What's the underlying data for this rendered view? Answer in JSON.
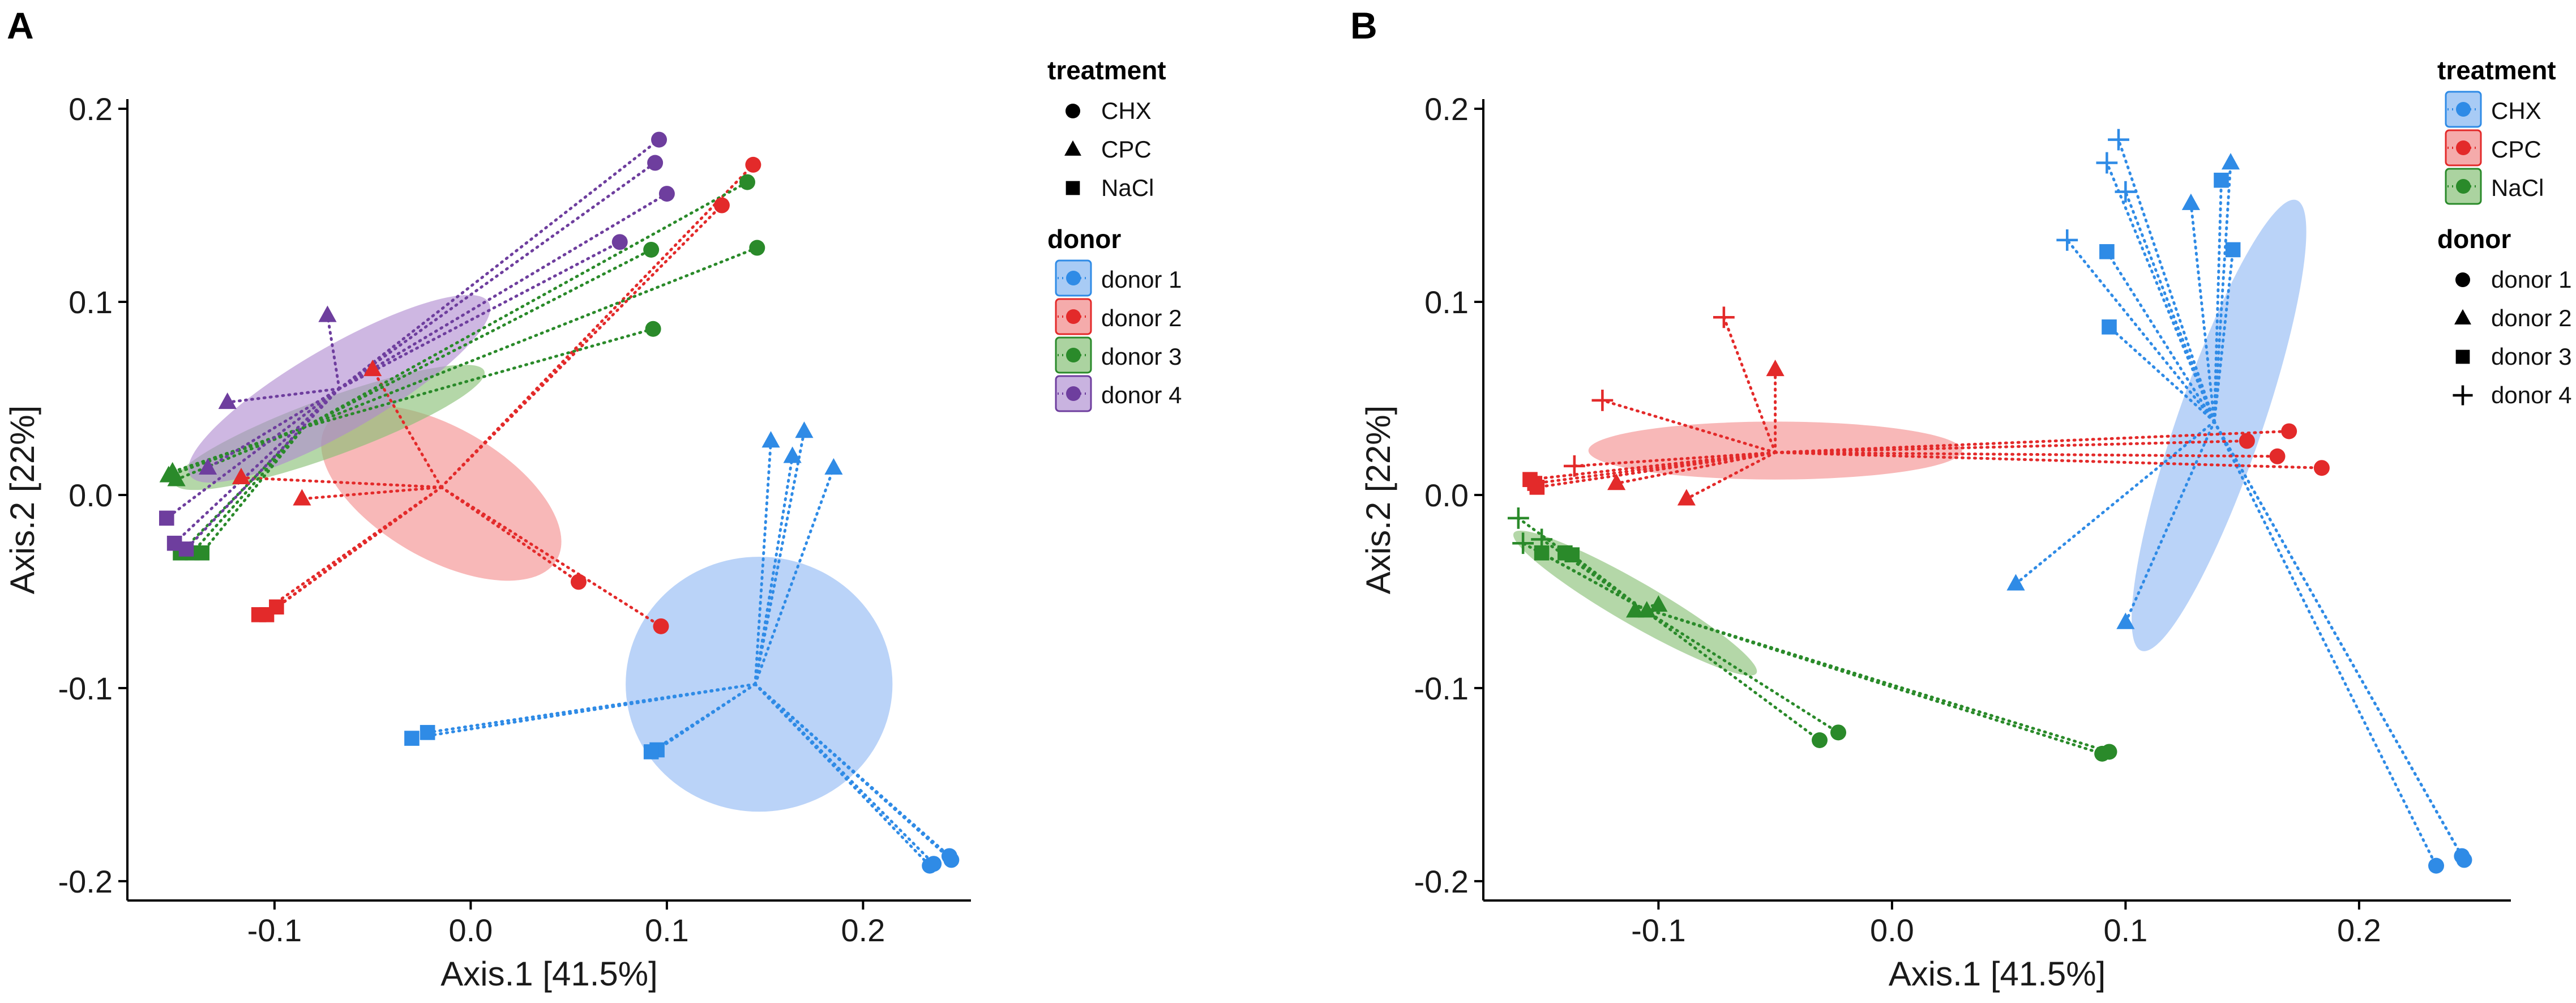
{
  "colors": {
    "blue": "#2F8BE6",
    "red": "#E32A2A",
    "green": "#2A8A2A",
    "purple": "#6E3E9E",
    "blue_fill": "#8FB8F3",
    "red_fill": "#F38C8C",
    "green_fill": "#86BF73",
    "purple_fill": "#B08BD0",
    "legend_blue_bg": "#A8CBF5",
    "legend_red_bg": "#F5ABAB",
    "legend_green_bg": "#ABD3A0",
    "legend_purple_bg": "#C9B3E0"
  },
  "chart_data": [
    {
      "panel": "A",
      "type": "scatter",
      "title": "",
      "xlabel": "Axis.1   [41.5%]",
      "ylabel": "Axis.2   [22%]",
      "xlim": [
        -0.175,
        0.255
      ],
      "ylim": [
        -0.21,
        0.205
      ],
      "x_ticks": [
        -0.1,
        0.0,
        0.1,
        0.2
      ],
      "x_tick_labels": [
        "-0.1",
        "0.0",
        "0.1",
        "0.2"
      ],
      "y_ticks": [
        -0.2,
        -0.1,
        0.0,
        0.1,
        0.2
      ],
      "y_tick_labels": [
        "-0.2",
        "-0.1",
        "0.0",
        "0.1",
        "0.2"
      ],
      "legend": {
        "position": "right",
        "groups": [
          {
            "title": "treatment",
            "style": "shape",
            "entries": [
              {
                "label": "CHX",
                "shape": "circle"
              },
              {
                "label": "CPC",
                "shape": "triangle"
              },
              {
                "label": "NaCl",
                "shape": "square"
              }
            ]
          },
          {
            "title": "donor",
            "style": "color",
            "entries": [
              {
                "label": "donor 1",
                "color": "blue"
              },
              {
                "label": "donor 2",
                "color": "red"
              },
              {
                "label": "donor 3",
                "color": "green"
              },
              {
                "label": "donor 4",
                "color": "purple"
              }
            ]
          }
        ]
      },
      "series": [
        {
          "name": "donor 1",
          "color": "blue",
          "centroid": [
            0.145,
            -0.098
          ],
          "ellipse": {
            "cx": 0.147,
            "cy": -0.098,
            "rx": 0.068,
            "ry": 0.066,
            "angle": 0
          },
          "points": [
            {
              "x": 0.153,
              "y": 0.028,
              "shape": "triangle"
            },
            {
              "x": 0.17,
              "y": 0.033,
              "shape": "triangle"
            },
            {
              "x": 0.164,
              "y": 0.02,
              "shape": "triangle"
            },
            {
              "x": 0.185,
              "y": 0.014,
              "shape": "triangle"
            },
            {
              "x": -0.022,
              "y": -0.123,
              "shape": "square"
            },
            {
              "x": -0.03,
              "y": -0.126,
              "shape": "square"
            },
            {
              "x": 0.095,
              "y": -0.132,
              "shape": "square"
            },
            {
              "x": 0.092,
              "y": -0.133,
              "shape": "square"
            },
            {
              "x": 0.234,
              "y": -0.192,
              "shape": "circle"
            },
            {
              "x": 0.236,
              "y": -0.191,
              "shape": "circle"
            },
            {
              "x": 0.244,
              "y": -0.187,
              "shape": "circle"
            },
            {
              "x": 0.245,
              "y": -0.189,
              "shape": "circle"
            }
          ]
        },
        {
          "name": "donor 2",
          "color": "red",
          "centroid": [
            -0.015,
            0.004
          ],
          "ellipse": {
            "cx": -0.015,
            "cy": 0.001,
            "rx": 0.068,
            "ry": 0.034,
            "angle": 30
          },
          "points": [
            {
              "x": -0.117,
              "y": 0.009,
              "shape": "triangle"
            },
            {
              "x": -0.086,
              "y": -0.002,
              "shape": "triangle"
            },
            {
              "x": -0.05,
              "y": 0.065,
              "shape": "triangle"
            },
            {
              "x": -0.108,
              "y": -0.062,
              "shape": "square"
            },
            {
              "x": -0.104,
              "y": -0.062,
              "shape": "square"
            },
            {
              "x": -0.099,
              "y": -0.058,
              "shape": "square"
            },
            {
              "x": 0.055,
              "y": -0.045,
              "shape": "circle"
            },
            {
              "x": 0.128,
              "y": 0.15,
              "shape": "circle"
            },
            {
              "x": 0.144,
              "y": 0.171,
              "shape": "circle"
            },
            {
              "x": 0.097,
              "y": -0.068,
              "shape": "circle"
            }
          ]
        },
        {
          "name": "donor 3",
          "color": "green",
          "centroid": [
            -0.085,
            0.035
          ],
          "ellipse": {
            "cx": -0.072,
            "cy": 0.035,
            "rx": 0.084,
            "ry": 0.015,
            "angle": -20
          },
          "points": [
            {
              "x": -0.154,
              "y": 0.01,
              "shape": "triangle"
            },
            {
              "x": -0.152,
              "y": 0.012,
              "shape": "triangle"
            },
            {
              "x": -0.15,
              "y": 0.008,
              "shape": "triangle"
            },
            {
              "x": -0.148,
              "y": -0.03,
              "shape": "square"
            },
            {
              "x": -0.142,
              "y": -0.03,
              "shape": "square"
            },
            {
              "x": -0.137,
              "y": -0.03,
              "shape": "square"
            },
            {
              "x": 0.092,
              "y": 0.127,
              "shape": "circle"
            },
            {
              "x": 0.141,
              "y": 0.162,
              "shape": "circle"
            },
            {
              "x": 0.146,
              "y": 0.128,
              "shape": "circle"
            },
            {
              "x": 0.093,
              "y": 0.086,
              "shape": "circle"
            }
          ]
        },
        {
          "name": "donor 4",
          "color": "purple",
          "centroid": [
            -0.067,
            0.055
          ],
          "ellipse": {
            "cx": -0.067,
            "cy": 0.055,
            "rx": 0.088,
            "ry": 0.022,
            "angle": -30
          },
          "points": [
            {
              "x": -0.073,
              "y": 0.093,
              "shape": "triangle"
            },
            {
              "x": -0.124,
              "y": 0.048,
              "shape": "triangle"
            },
            {
              "x": -0.134,
              "y": 0.014,
              "shape": "triangle"
            },
            {
              "x": -0.155,
              "y": -0.012,
              "shape": "square"
            },
            {
              "x": -0.151,
              "y": -0.025,
              "shape": "square"
            },
            {
              "x": -0.145,
              "y": -0.028,
              "shape": "square"
            },
            {
              "x": 0.096,
              "y": 0.184,
              "shape": "circle"
            },
            {
              "x": 0.094,
              "y": 0.172,
              "shape": "circle"
            },
            {
              "x": 0.1,
              "y": 0.156,
              "shape": "circle"
            },
            {
              "x": 0.076,
              "y": 0.131,
              "shape": "circle"
            }
          ]
        }
      ]
    },
    {
      "panel": "B",
      "type": "scatter",
      "title": "",
      "xlabel": "Axis.1   [41.5%]",
      "ylabel": "Axis.2   [22%]",
      "xlim": [
        -0.175,
        0.265
      ],
      "ylim": [
        -0.21,
        0.205
      ],
      "x_ticks": [
        -0.1,
        0.0,
        0.1,
        0.2
      ],
      "x_tick_labels": [
        "-0.1",
        "0.0",
        "0.1",
        "0.2"
      ],
      "y_ticks": [
        -0.2,
        -0.1,
        0.0,
        0.1,
        0.2
      ],
      "y_tick_labels": [
        "-0.2",
        "-0.1",
        "0.0",
        "0.1",
        "0.2"
      ],
      "legend": {
        "position": "right",
        "groups": [
          {
            "title": "treatment",
            "style": "color",
            "entries": [
              {
                "label": "CHX",
                "color": "blue"
              },
              {
                "label": "CPC",
                "color": "red"
              },
              {
                "label": "NaCl",
                "color": "green"
              }
            ]
          },
          {
            "title": "donor",
            "style": "shape",
            "entries": [
              {
                "label": "donor 1",
                "shape": "circle"
              },
              {
                "label": "donor 2",
                "shape": "triangle"
              },
              {
                "label": "donor 3",
                "shape": "square"
              },
              {
                "label": "donor 4",
                "shape": "plus"
              }
            ]
          }
        ]
      },
      "series": [
        {
          "name": "CHX",
          "color": "blue",
          "centroid": [
            0.138,
            0.038
          ],
          "ellipse": {
            "cx": 0.14,
            "cy": 0.036,
            "rx": 0.102,
            "ry": 0.022,
            "angle": -71
          },
          "points": [
            {
              "x": 0.097,
              "y": 0.184,
              "shape": "plus"
            },
            {
              "x": 0.092,
              "y": 0.172,
              "shape": "plus"
            },
            {
              "x": 0.1,
              "y": 0.157,
              "shape": "plus"
            },
            {
              "x": 0.075,
              "y": 0.132,
              "shape": "plus"
            },
            {
              "x": 0.145,
              "y": 0.172,
              "shape": "triangle"
            },
            {
              "x": 0.128,
              "y": 0.151,
              "shape": "triangle"
            },
            {
              "x": 0.053,
              "y": -0.046,
              "shape": "triangle"
            },
            {
              "x": 0.1,
              "y": -0.066,
              "shape": "triangle"
            },
            {
              "x": 0.141,
              "y": 0.163,
              "shape": "square"
            },
            {
              "x": 0.146,
              "y": 0.127,
              "shape": "square"
            },
            {
              "x": 0.092,
              "y": 0.126,
              "shape": "square"
            },
            {
              "x": 0.093,
              "y": 0.087,
              "shape": "square"
            },
            {
              "x": 0.233,
              "y": -0.192,
              "shape": "circle"
            },
            {
              "x": 0.244,
              "y": -0.187,
              "shape": "circle"
            },
            {
              "x": 0.245,
              "y": -0.189,
              "shape": "circle"
            }
          ]
        },
        {
          "name": "CPC",
          "color": "red",
          "centroid": [
            -0.05,
            0.022
          ],
          "ellipse": {
            "cx": -0.05,
            "cy": 0.023,
            "rx": 0.08,
            "ry": 0.015,
            "angle": 0
          },
          "points": [
            {
              "x": -0.072,
              "y": 0.092,
              "shape": "plus"
            },
            {
              "x": -0.124,
              "y": 0.049,
              "shape": "plus"
            },
            {
              "x": -0.136,
              "y": 0.015,
              "shape": "plus"
            },
            {
              "x": -0.05,
              "y": 0.065,
              "shape": "triangle"
            },
            {
              "x": -0.118,
              "y": 0.006,
              "shape": "triangle"
            },
            {
              "x": -0.088,
              "y": -0.002,
              "shape": "triangle"
            },
            {
              "x": -0.155,
              "y": 0.008,
              "shape": "square"
            },
            {
              "x": -0.153,
              "y": 0.006,
              "shape": "square"
            },
            {
              "x": -0.152,
              "y": 0.004,
              "shape": "square"
            },
            {
              "x": 0.165,
              "y": 0.02,
              "shape": "circle"
            },
            {
              "x": 0.17,
              "y": 0.033,
              "shape": "circle"
            },
            {
              "x": 0.184,
              "y": 0.014,
              "shape": "circle"
            },
            {
              "x": 0.152,
              "y": 0.028,
              "shape": "circle"
            }
          ]
        },
        {
          "name": "NaCl",
          "color": "green",
          "centroid": [
            -0.108,
            -0.058
          ],
          "ellipse": {
            "cx": -0.11,
            "cy": -0.056,
            "rx": 0.06,
            "ry": 0.011,
            "angle": 30
          },
          "points": [
            {
              "x": -0.16,
              "y": -0.012,
              "shape": "plus"
            },
            {
              "x": -0.158,
              "y": -0.025,
              "shape": "plus"
            },
            {
              "x": -0.15,
              "y": -0.023,
              "shape": "plus"
            },
            {
              "x": -0.11,
              "y": -0.06,
              "shape": "triangle"
            },
            {
              "x": -0.105,
              "y": -0.06,
              "shape": "triangle"
            },
            {
              "x": -0.1,
              "y": -0.057,
              "shape": "triangle"
            },
            {
              "x": -0.15,
              "y": -0.03,
              "shape": "square"
            },
            {
              "x": -0.14,
              "y": -0.03,
              "shape": "square"
            },
            {
              "x": -0.137,
              "y": -0.031,
              "shape": "square"
            },
            {
              "x": -0.031,
              "y": -0.127,
              "shape": "circle"
            },
            {
              "x": -0.023,
              "y": -0.123,
              "shape": "circle"
            },
            {
              "x": 0.09,
              "y": -0.134,
              "shape": "circle"
            },
            {
              "x": 0.093,
              "y": -0.133,
              "shape": "circle"
            }
          ]
        }
      ]
    }
  ],
  "panel_labels": [
    "A",
    "B"
  ]
}
